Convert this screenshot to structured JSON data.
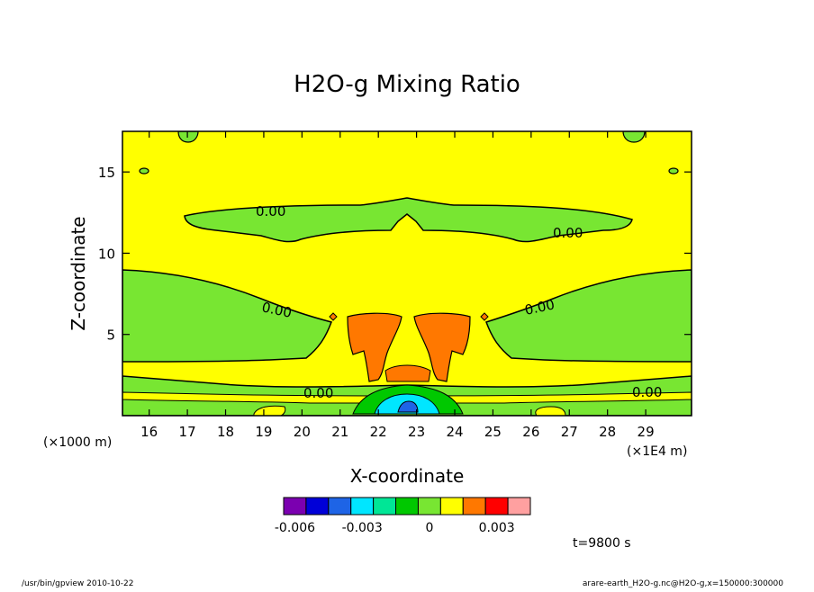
{
  "chart_data": {
    "type": "contour",
    "title": "H2O-g Mixing Ratio",
    "xlabel": "X-coordinate",
    "ylabel": "Z-coordinate",
    "x_unit_left": "(×1000 m)",
    "x_unit_right": "(×1E4 m)",
    "xlim": [
      15.3,
      30.2
    ],
    "ylim": [
      0,
      17.5
    ],
    "x_ticks": [
      "16",
      "17",
      "18",
      "19",
      "20",
      "21",
      "22",
      "23",
      "24",
      "25",
      "26",
      "27",
      "28",
      "29"
    ],
    "y_ticks": [
      "5",
      "10",
      "15"
    ],
    "contour_labels": [
      "0.00",
      "0.00",
      "0.00",
      "0.00",
      "0.00",
      "0.00"
    ],
    "colorbar": {
      "colors": [
        "#7b00b0",
        "#0000d8",
        "#1e64e6",
        "#00e6ff",
        "#00e696",
        "#00c800",
        "#78e632",
        "#ffff00",
        "#ff7800",
        "#ff0000",
        "#ffa0a0"
      ],
      "tick_labels": [
        "-0.006",
        "-0.003",
        "0",
        "0.003"
      ],
      "tick_values": [
        -0.006,
        -0.003,
        0,
        0.003
      ]
    },
    "time_label": "t=9800 s"
  },
  "footer": {
    "left": "/usr/bin/gpview  2010-10-22",
    "right": "arare-earth_H2O-g.nc@H2O-g,x=150000:300000"
  }
}
